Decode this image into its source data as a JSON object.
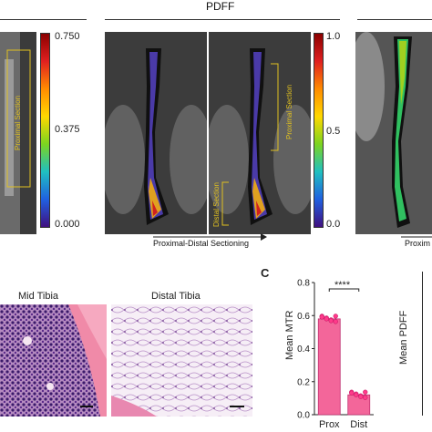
{
  "figure": {
    "header_pdff": "PDFF",
    "colorbar_mtr": {
      "ticks": [
        "0.750",
        "0.375",
        "0.000"
      ]
    },
    "colorbar_pdff": {
      "ticks": [
        "1.0",
        "0.5",
        "0.0"
      ]
    },
    "annotations": {
      "proximal_section": "Proximal Section",
      "distal_section": "Distal Section",
      "sectioning_arrow": "Proximal-Distal Sectioning",
      "proximal_cut": "Proxim"
    },
    "histology": {
      "mid_label": "Mid Tibia",
      "distal_label": "Distal Tibia"
    },
    "panel_c_letter": "C",
    "panel_c_ylabel": "Mean MTR",
    "panel_d_ylabel": "Mean PDFF",
    "significance": "****",
    "colors": {
      "bar": "#f3669a",
      "bar_light": "#f7a3c3",
      "guide": "#e0c020"
    }
  },
  "chart_data": {
    "type": "bar",
    "categories": [
      "Prox",
      "Dist"
    ],
    "values": [
      0.58,
      0.12
    ],
    "ylabel": "Mean MTR",
    "ylim": [
      0,
      0.8
    ],
    "yticks": [
      "0.0",
      "0.2",
      "0.4",
      "0.6",
      "0.8"
    ]
  }
}
